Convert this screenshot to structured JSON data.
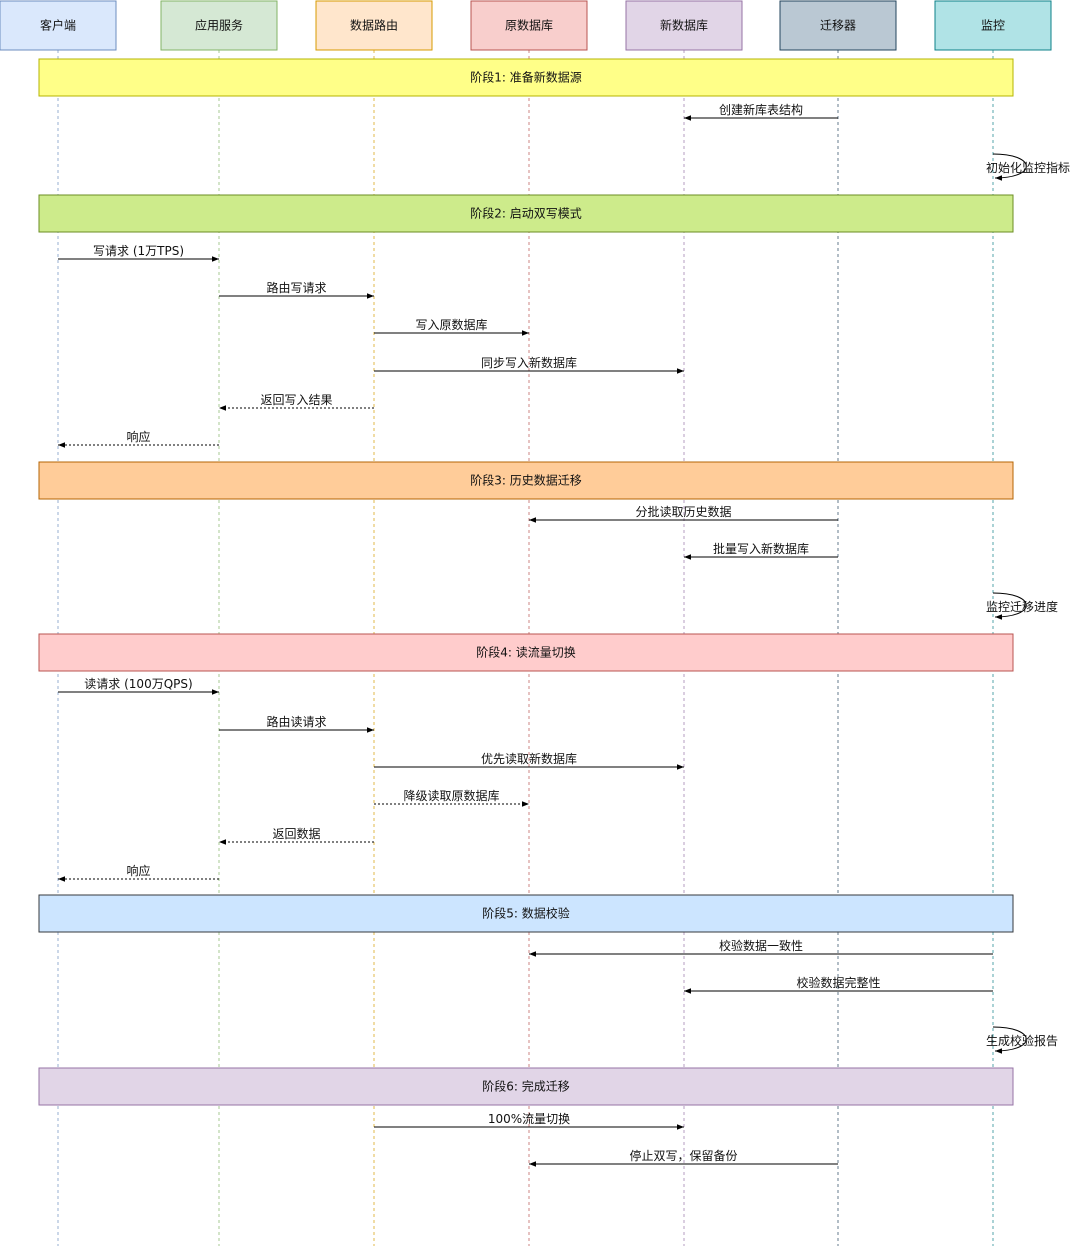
{
  "participants": [
    {
      "id": "client",
      "label": "客户端",
      "fill": "#dae8fc",
      "stroke": "#6c8ebf"
    },
    {
      "id": "app",
      "label": "应用服务",
      "fill": "#d5e8d4",
      "stroke": "#82b366"
    },
    {
      "id": "router",
      "label": "数据路由",
      "fill": "#ffe6cc",
      "stroke": "#d79b00"
    },
    {
      "id": "olddb",
      "label": "原数据库",
      "fill": "#f8cecc",
      "stroke": "#b85450"
    },
    {
      "id": "newdb",
      "label": "新数据库",
      "fill": "#e1d5e7",
      "stroke": "#9673a6"
    },
    {
      "id": "migrator",
      "label": "迁移器",
      "fill": "#bac8d3",
      "stroke": "#23445d"
    },
    {
      "id": "monitor",
      "label": "监控",
      "fill": "#b0e3e6",
      "stroke": "#0e8088"
    }
  ],
  "phases": [
    {
      "label": "阶段1: 准备新数据源",
      "fill": "#ffff88",
      "stroke": "#b5b500"
    },
    {
      "label": "阶段2: 启动双写模式",
      "fill": "#cdeb8b",
      "stroke": "#6b8e23"
    },
    {
      "label": "阶段3: 历史数据迁移",
      "fill": "#ffcc99",
      "stroke": "#b46504"
    },
    {
      "label": "阶段4: 读流量切换",
      "fill": "#ffcccc",
      "stroke": "#b85450"
    },
    {
      "label": "阶段5: 数据校验",
      "fill": "#cce5ff",
      "stroke": "#36393d"
    },
    {
      "label": "阶段6: 完成迁移",
      "fill": "#e1d5e7",
      "stroke": "#9673a6"
    }
  ],
  "messages": [
    {
      "from": "migrator",
      "to": "newdb",
      "label": "创建新库表结构",
      "style": "solid"
    },
    {
      "from": "monitor",
      "to": "monitor",
      "label": "初始化监控指标",
      "style": "self"
    },
    {
      "from": "client",
      "to": "app",
      "label": "写请求 (1万TPS)",
      "style": "solid"
    },
    {
      "from": "app",
      "to": "router",
      "label": "路由写请求",
      "style": "solid"
    },
    {
      "from": "router",
      "to": "olddb",
      "label": "写入原数据库",
      "style": "solid"
    },
    {
      "from": "router",
      "to": "newdb",
      "label": "同步写入新数据库",
      "style": "solid"
    },
    {
      "from": "router",
      "to": "app",
      "label": "返回写入结果",
      "style": "dashed"
    },
    {
      "from": "app",
      "to": "client",
      "label": "响应",
      "style": "dashed"
    },
    {
      "from": "migrator",
      "to": "olddb",
      "label": "分批读取历史数据",
      "style": "solid"
    },
    {
      "from": "migrator",
      "to": "newdb",
      "label": "批量写入新数据库",
      "style": "solid"
    },
    {
      "from": "monitor",
      "to": "monitor",
      "label": "监控迁移进度",
      "style": "self"
    },
    {
      "from": "client",
      "to": "app",
      "label": "读请求 (100万QPS)",
      "style": "solid"
    },
    {
      "from": "app",
      "to": "router",
      "label": "路由读请求",
      "style": "solid"
    },
    {
      "from": "router",
      "to": "newdb",
      "label": "优先读取新数据库",
      "style": "solid"
    },
    {
      "from": "router",
      "to": "olddb",
      "label": "降级读取原数据库",
      "style": "dashed"
    },
    {
      "from": "router",
      "to": "app",
      "label": "返回数据",
      "style": "dashed"
    },
    {
      "from": "app",
      "to": "client",
      "label": "响应",
      "style": "dashed"
    },
    {
      "from": "monitor",
      "to": "olddb",
      "label": "校验数据一致性",
      "style": "solid"
    },
    {
      "from": "monitor",
      "to": "newdb",
      "label": "校验数据完整性",
      "style": "solid"
    },
    {
      "from": "monitor",
      "to": "monitor",
      "label": "生成校验报告",
      "style": "self"
    },
    {
      "from": "router",
      "to": "newdb",
      "label": "100%流量切换",
      "style": "solid"
    },
    {
      "from": "migrator",
      "to": "olddb",
      "label": "停止双写，保留备份",
      "style": "solid"
    }
  ]
}
